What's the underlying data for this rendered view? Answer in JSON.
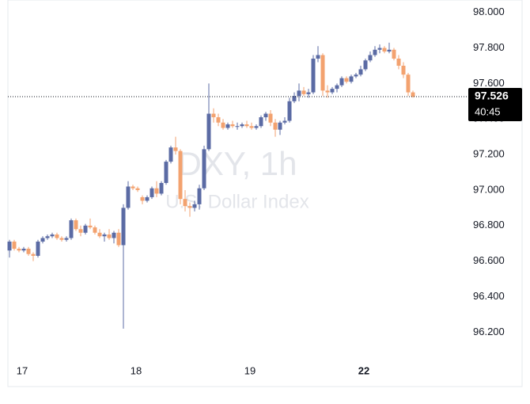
{
  "chart_data": {
    "type": "candlestick",
    "title": "DXY, 1h",
    "subtitle": "U.S. Dollar Index",
    "categories": [
      null,
      null,
      null,
      "17",
      null,
      null,
      null,
      null,
      null,
      null,
      null,
      null,
      null,
      null,
      null,
      null,
      null,
      null,
      null,
      null,
      null,
      null,
      null,
      null,
      null,
      null,
      null,
      "18",
      null,
      null,
      null,
      null,
      null,
      null,
      null,
      null,
      null,
      null,
      null,
      null,
      null,
      null,
      null,
      null,
      null,
      null,
      null,
      null,
      null,
      null,
      null,
      "19",
      null,
      null,
      null,
      null,
      null,
      null,
      null,
      null,
      null,
      null,
      null,
      null,
      null,
      null,
      null,
      null,
      null,
      null,
      null,
      null,
      null,
      null,
      null,
      "22",
      null,
      null,
      null,
      null,
      null,
      null,
      null,
      null,
      null,
      null
    ],
    "open": [
      96.66,
      96.71,
      96.67,
      96.66,
      96.67,
      96.64,
      96.63,
      96.71,
      96.73,
      96.74,
      96.75,
      96.73,
      96.72,
      96.73,
      96.83,
      96.78,
      96.76,
      96.8,
      96.79,
      96.76,
      96.74,
      96.75,
      96.73,
      96.76,
      96.69,
      96.9,
      97.02,
      97.01,
      96.96,
      96.94,
      96.96,
      97.01,
      96.98,
      97.04,
      97.16,
      97.24,
      97.22,
      96.95,
      96.91,
      96.9,
      96.92,
      97.01,
      97.23,
      97.43,
      97.41,
      97.38,
      97.35,
      97.37,
      97.36,
      97.36,
      97.37,
      97.36,
      97.35,
      97.36,
      97.41,
      97.43,
      97.38,
      97.34,
      97.38,
      97.39,
      97.5,
      97.53,
      97.56,
      97.54,
      97.55,
      97.74,
      97.76,
      97.56,
      97.55,
      97.57,
      97.59,
      97.63,
      97.61,
      97.64,
      97.65,
      97.68,
      97.73,
      97.76,
      97.79,
      97.8,
      97.78,
      97.79,
      97.74,
      97.7,
      97.65,
      97.55
    ],
    "high": [
      96.72,
      96.72,
      96.68,
      96.68,
      96.68,
      96.65,
      96.72,
      96.74,
      96.75,
      96.76,
      96.76,
      96.74,
      96.74,
      96.84,
      96.84,
      96.8,
      96.81,
      96.84,
      96.8,
      96.78,
      96.76,
      96.78,
      96.77,
      96.78,
      96.92,
      97.05,
      97.03,
      97.02,
      96.97,
      96.97,
      97.02,
      97.05,
      97.05,
      97.17,
      97.25,
      97.3,
      97.23,
      97.0,
      96.93,
      96.94,
      97.03,
      97.25,
      97.6,
      97.46,
      97.43,
      97.4,
      97.38,
      97.39,
      97.38,
      97.38,
      97.39,
      97.38,
      97.37,
      97.42,
      97.44,
      97.45,
      97.4,
      97.39,
      97.41,
      97.52,
      97.55,
      97.6,
      97.58,
      97.57,
      97.76,
      97.81,
      97.77,
      97.59,
      97.58,
      97.6,
      97.64,
      97.64,
      97.65,
      97.66,
      97.7,
      97.74,
      97.78,
      97.81,
      97.82,
      97.81,
      97.83,
      97.8,
      97.76,
      97.72,
      97.66,
      97.56
    ],
    "low": [
      96.62,
      96.66,
      96.65,
      96.65,
      96.63,
      96.6,
      96.62,
      96.7,
      96.72,
      96.73,
      96.72,
      96.71,
      96.71,
      96.72,
      96.77,
      96.74,
      96.75,
      96.78,
      96.75,
      96.73,
      96.71,
      96.72,
      96.7,
      96.68,
      96.22,
      96.89,
      97.0,
      96.99,
      96.92,
      96.93,
      96.95,
      96.96,
      96.97,
      97.03,
      97.15,
      97.2,
      96.92,
      96.88,
      96.85,
      96.88,
      96.89,
      97.0,
      97.22,
      97.38,
      97.36,
      97.34,
      97.34,
      97.35,
      97.34,
      97.35,
      97.35,
      97.34,
      97.34,
      97.35,
      97.39,
      97.36,
      97.3,
      97.31,
      97.37,
      97.38,
      97.49,
      97.5,
      97.53,
      97.52,
      97.54,
      97.72,
      97.53,
      97.52,
      97.54,
      97.55,
      97.58,
      97.6,
      97.6,
      97.63,
      97.64,
      97.67,
      97.72,
      97.75,
      97.77,
      97.77,
      97.77,
      97.73,
      97.68,
      97.63,
      97.53,
      97.52
    ],
    "close": [
      96.71,
      96.67,
      96.66,
      96.67,
      96.64,
      96.63,
      96.71,
      96.73,
      96.74,
      96.75,
      96.73,
      96.72,
      96.73,
      96.83,
      96.78,
      96.76,
      96.8,
      96.79,
      96.76,
      96.74,
      96.75,
      96.73,
      96.76,
      96.69,
      96.9,
      97.02,
      97.01,
      97.0,
      96.94,
      96.96,
      97.01,
      96.98,
      97.04,
      97.16,
      97.24,
      97.22,
      96.95,
      96.91,
      96.9,
      96.92,
      97.01,
      97.23,
      97.43,
      97.41,
      97.38,
      97.35,
      97.37,
      97.36,
      97.36,
      97.37,
      97.36,
      97.35,
      97.36,
      97.41,
      97.43,
      97.38,
      97.34,
      97.38,
      97.39,
      97.5,
      97.53,
      97.56,
      97.54,
      97.55,
      97.74,
      97.76,
      97.56,
      97.55,
      97.57,
      97.59,
      97.63,
      97.61,
      97.64,
      97.65,
      97.68,
      97.73,
      97.76,
      97.79,
      97.8,
      97.78,
      97.79,
      97.74,
      97.7,
      97.65,
      97.55,
      97.526
    ],
    "up_color": "#5b6ba4",
    "down_color": "#f3a26f",
    "ylim": [
      96.05,
      98.07
    ],
    "yticks": [
      {
        "value": 98.0,
        "label": "98.000"
      },
      {
        "value": 97.8,
        "label": "97.800"
      },
      {
        "value": 97.6,
        "label": "97.600"
      },
      {
        "value": 97.4,
        "label": "97.400"
      },
      {
        "value": 97.2,
        "label": "97.200"
      },
      {
        "value": 97.0,
        "label": "97.000"
      },
      {
        "value": 96.8,
        "label": "96.800"
      },
      {
        "value": 96.6,
        "label": "96.600"
      },
      {
        "value": 96.4,
        "label": "96.400"
      },
      {
        "value": 96.2,
        "label": "96.200"
      }
    ],
    "last_price": 97.526,
    "countdown": "40:45",
    "bold_category": "22"
  }
}
